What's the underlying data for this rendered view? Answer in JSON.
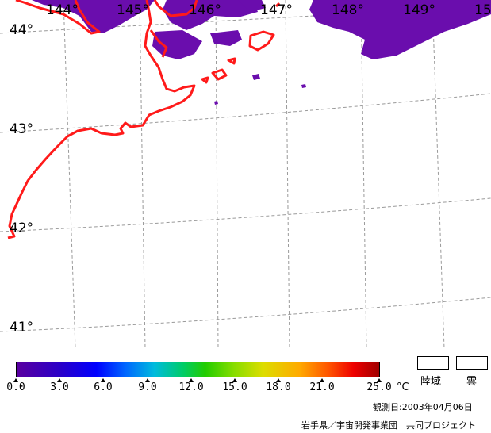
{
  "map": {
    "lon_labels": [
      "144°",
      "145°",
      "146°",
      "147°",
      "148°",
      "149°",
      "15"
    ],
    "lat_labels": [
      "44°",
      "43°",
      "42°",
      "41°"
    ],
    "coast_color": "#ff1a1a",
    "cloud_color": "#6a0dad",
    "grid_color": "#9a9a9a"
  },
  "colorbar": {
    "ticks": [
      "0.0",
      "3.0",
      "6.0",
      "9.0",
      "12.0",
      "15.0",
      "18.0",
      "21.0",
      "25.0"
    ],
    "unit": "°C"
  },
  "legend": {
    "land_label": "陸域",
    "cloud_label": "雲"
  },
  "footer": {
    "date": "観測日:2003年04月06日",
    "credit": "岩手県／宇宙開発事業団　共同プロジェクト"
  }
}
